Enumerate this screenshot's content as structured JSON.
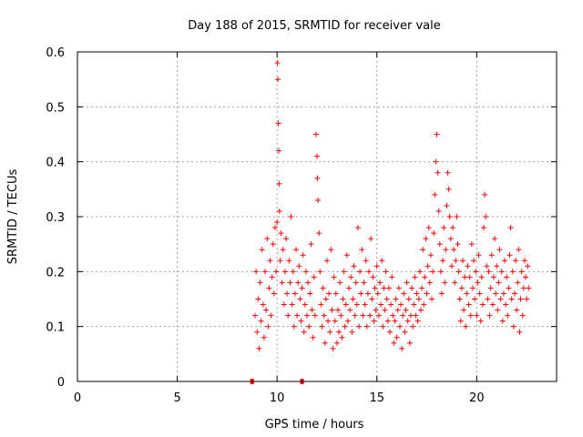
{
  "chart_data": {
    "type": "scatter",
    "title": "Day 188 of 2015, SRMTID for receiver vale",
    "xlabel": "GPS time / hours",
    "ylabel": "SRMTID / TECUs",
    "xlim": [
      0,
      24
    ],
    "ylim": [
      0,
      0.6
    ],
    "x_ticks": [
      0,
      5,
      10,
      15,
      20
    ],
    "x_tick_labels": [
      "0",
      "5",
      "10",
      "15",
      "20"
    ],
    "y_ticks": [
      0,
      0.1,
      0.2,
      0.3,
      0.4,
      0.5,
      0.6
    ],
    "y_tick_labels": [
      "0",
      "0.1",
      "0.2",
      "0.3",
      "0.4",
      "0.5",
      "0.6"
    ],
    "grid": true,
    "marker": "+",
    "series_color": "#ff0000",
    "series": [
      {
        "name": "SRMTID",
        "points": [
          [
            8.9,
            0.12
          ],
          [
            8.95,
            0.2
          ],
          [
            9.0,
            0.09
          ],
          [
            9.05,
            0.15
          ],
          [
            9.1,
            0.06
          ],
          [
            9.15,
            0.18
          ],
          [
            9.2,
            0.11
          ],
          [
            9.25,
            0.24
          ],
          [
            9.3,
            0.14
          ],
          [
            9.35,
            0.08
          ],
          [
            9.4,
            0.2
          ],
          [
            9.45,
            0.13
          ],
          [
            9.5,
            0.26
          ],
          [
            9.55,
            0.1
          ],
          [
            9.6,
            0.17
          ],
          [
            9.65,
            0.22
          ],
          [
            9.7,
            0.12
          ],
          [
            9.75,
            0.19
          ],
          [
            9.8,
            0.25
          ],
          [
            9.85,
            0.16
          ],
          [
            9.9,
            0.28
          ],
          [
            9.95,
            0.2
          ],
          [
            10.0,
            0.29
          ],
          [
            10.02,
            0.58
          ],
          [
            10.04,
            0.55
          ],
          [
            10.06,
            0.47
          ],
          [
            10.08,
            0.42
          ],
          [
            10.1,
            0.36
          ],
          [
            10.12,
            0.31
          ],
          [
            10.15,
            0.22
          ],
          [
            10.2,
            0.27
          ],
          [
            10.25,
            0.18
          ],
          [
            10.3,
            0.24
          ],
          [
            10.35,
            0.14
          ],
          [
            10.4,
            0.2
          ],
          [
            10.45,
            0.26
          ],
          [
            10.5,
            0.16
          ],
          [
            10.55,
            0.12
          ],
          [
            10.6,
            0.22
          ],
          [
            10.65,
            0.18
          ],
          [
            10.7,
            0.3
          ],
          [
            10.75,
            0.14
          ],
          [
            10.8,
            0.2
          ],
          [
            10.85,
            0.1
          ],
          [
            10.9,
            0.16
          ],
          [
            10.95,
            0.24
          ],
          [
            11.0,
            0.12
          ],
          [
            11.05,
            0.18
          ],
          [
            11.1,
            0.21
          ],
          [
            11.15,
            0.15
          ],
          [
            11.2,
            0.11
          ],
          [
            11.25,
            0.17
          ],
          [
            11.3,
            0.23
          ],
          [
            11.35,
            0.09
          ],
          [
            11.4,
            0.14
          ],
          [
            11.45,
            0.2
          ],
          [
            11.5,
            0.12
          ],
          [
            11.55,
            0.18
          ],
          [
            11.6,
            0.1
          ],
          [
            11.65,
            0.16
          ],
          [
            11.7,
            0.25
          ],
          [
            11.75,
            0.13
          ],
          [
            11.8,
            0.08
          ],
          [
            11.85,
            0.19
          ],
          [
            11.9,
            0.12
          ],
          [
            11.95,
            0.45
          ],
          [
            12.0,
            0.41
          ],
          [
            12.02,
            0.37
          ],
          [
            12.05,
            0.33
          ],
          [
            12.1,
            0.27
          ],
          [
            12.15,
            0.2
          ],
          [
            12.2,
            0.14
          ],
          [
            12.25,
            0.1
          ],
          [
            12.3,
            0.17
          ],
          [
            12.35,
            0.12
          ],
          [
            12.4,
            0.07
          ],
          [
            12.45,
            0.15
          ],
          [
            12.5,
            0.22
          ],
          [
            12.55,
            0.11
          ],
          [
            12.6,
            0.16
          ],
          [
            12.65,
            0.09
          ],
          [
            12.7,
            0.24
          ],
          [
            12.75,
            0.13
          ],
          [
            12.8,
            0.06
          ],
          [
            12.85,
            0.19
          ],
          [
            12.9,
            0.11
          ],
          [
            12.95,
            0.16
          ],
          [
            13.0,
            0.07
          ],
          [
            13.05,
            0.13
          ],
          [
            13.1,
            0.09
          ],
          [
            13.15,
            0.18
          ],
          [
            13.2,
            0.12
          ],
          [
            13.25,
            0.08
          ],
          [
            13.3,
            0.15
          ],
          [
            13.35,
            0.2
          ],
          [
            13.4,
            0.1
          ],
          [
            13.45,
            0.14
          ],
          [
            13.5,
            0.23
          ],
          [
            13.55,
            0.11
          ],
          [
            13.6,
            0.17
          ],
          [
            13.65,
            0.13
          ],
          [
            13.7,
            0.19
          ],
          [
            13.75,
            0.09
          ],
          [
            13.8,
            0.15
          ],
          [
            13.85,
            0.21
          ],
          [
            13.9,
            0.12
          ],
          [
            13.95,
            0.18
          ],
          [
            14.0,
            0.14
          ],
          [
            14.05,
            0.28
          ],
          [
            14.1,
            0.1
          ],
          [
            14.15,
            0.2
          ],
          [
            14.2,
            0.16
          ],
          [
            14.25,
            0.24
          ],
          [
            14.3,
            0.12
          ],
          [
            14.35,
            0.18
          ],
          [
            14.4,
            0.14
          ],
          [
            14.45,
            0.22
          ],
          [
            14.5,
            0.1
          ],
          [
            14.55,
            0.16
          ],
          [
            14.6,
            0.2
          ],
          [
            14.65,
            0.12
          ],
          [
            14.7,
            0.26
          ],
          [
            14.75,
            0.15
          ],
          [
            14.8,
            0.19
          ],
          [
            14.85,
            0.11
          ],
          [
            14.9,
            0.17
          ],
          [
            14.95,
            0.13
          ],
          [
            15.0,
            0.21
          ],
          [
            15.05,
            0.16
          ],
          [
            15.1,
            0.12
          ],
          [
            15.15,
            0.18
          ],
          [
            15.2,
            0.14
          ],
          [
            15.25,
            0.22
          ],
          [
            15.3,
            0.1
          ],
          [
            15.35,
            0.17
          ],
          [
            15.4,
            0.13
          ],
          [
            15.45,
            0.2
          ],
          [
            15.5,
            0.15
          ],
          [
            15.55,
            0.11
          ],
          [
            15.6,
            0.17
          ],
          [
            15.65,
            0.09
          ],
          [
            15.7,
            0.14
          ],
          [
            15.75,
            0.19
          ],
          [
            15.8,
            0.12
          ],
          [
            15.85,
            0.07
          ],
          [
            15.9,
            0.11
          ],
          [
            15.95,
            0.15
          ],
          [
            16.0,
            0.08
          ],
          [
            16.05,
            0.13
          ],
          [
            16.1,
            0.17
          ],
          [
            16.15,
            0.1
          ],
          [
            16.2,
            0.14
          ],
          [
            16.25,
            0.06
          ],
          [
            16.3,
            0.12
          ],
          [
            16.35,
            0.16
          ],
          [
            16.4,
            0.09
          ],
          [
            16.45,
            0.13
          ],
          [
            16.5,
            0.18
          ],
          [
            16.55,
            0.11
          ],
          [
            16.6,
            0.15
          ],
          [
            16.65,
            0.07
          ],
          [
            16.7,
            0.12
          ],
          [
            16.75,
            0.17
          ],
          [
            16.8,
            0.1
          ],
          [
            16.85,
            0.14
          ],
          [
            16.9,
            0.19
          ],
          [
            16.95,
            0.12
          ],
          [
            17.0,
            0.16
          ],
          [
            17.05,
            0.11
          ],
          [
            17.1,
            0.15
          ],
          [
            17.15,
            0.2
          ],
          [
            17.2,
            0.13
          ],
          [
            17.25,
            0.17
          ],
          [
            17.3,
            0.24
          ],
          [
            17.35,
            0.14
          ],
          [
            17.4,
            0.19
          ],
          [
            17.45,
            0.26
          ],
          [
            17.5,
            0.16
          ],
          [
            17.55,
            0.21
          ],
          [
            17.6,
            0.28
          ],
          [
            17.65,
            0.18
          ],
          [
            17.7,
            0.23
          ],
          [
            17.75,
            0.15
          ],
          [
            17.8,
            0.2
          ],
          [
            17.85,
            0.27
          ],
          [
            17.9,
            0.34
          ],
          [
            17.95,
            0.4
          ],
          [
            18.0,
            0.45
          ],
          [
            18.05,
            0.38
          ],
          [
            18.1,
            0.31
          ],
          [
            18.15,
            0.25
          ],
          [
            18.2,
            0.2
          ],
          [
            18.25,
            0.16
          ],
          [
            18.3,
            0.22
          ],
          [
            18.35,
            0.28
          ],
          [
            18.4,
            0.18
          ],
          [
            18.45,
            0.24
          ],
          [
            18.5,
            0.32
          ],
          [
            18.55,
            0.38
          ],
          [
            18.6,
            0.35
          ],
          [
            18.65,
            0.3
          ],
          [
            18.7,
            0.26
          ],
          [
            18.75,
            0.21
          ],
          [
            18.8,
            0.28
          ],
          [
            18.85,
            0.24
          ],
          [
            18.9,
            0.18
          ],
          [
            18.95,
            0.22
          ],
          [
            19.0,
            0.3
          ],
          [
            19.05,
            0.25
          ],
          [
            19.1,
            0.2
          ],
          [
            19.15,
            0.15
          ],
          [
            19.2,
            0.11
          ],
          [
            19.25,
            0.17
          ],
          [
            19.3,
            0.22
          ],
          [
            19.35,
            0.13
          ],
          [
            19.4,
            0.19
          ],
          [
            19.45,
            0.1
          ],
          [
            19.5,
            0.16
          ],
          [
            19.55,
            0.21
          ],
          [
            19.6,
            0.14
          ],
          [
            19.65,
            0.19
          ],
          [
            19.7,
            0.12
          ],
          [
            19.75,
            0.25
          ],
          [
            19.8,
            0.17
          ],
          [
            19.85,
            0.22
          ],
          [
            19.9,
            0.15
          ],
          [
            19.95,
            0.2
          ],
          [
            20.0,
            0.12
          ],
          [
            20.05,
            0.18
          ],
          [
            20.1,
            0.23
          ],
          [
            20.15,
            0.16
          ],
          [
            20.2,
            0.11
          ],
          [
            20.25,
            0.19
          ],
          [
            20.3,
            0.14
          ],
          [
            20.35,
            0.28
          ],
          [
            20.4,
            0.34
          ],
          [
            20.45,
            0.3
          ],
          [
            20.5,
            0.21
          ],
          [
            20.55,
            0.15
          ],
          [
            20.6,
            0.2
          ],
          [
            20.65,
            0.12
          ],
          [
            20.7,
            0.17
          ],
          [
            20.75,
            0.23
          ],
          [
            20.8,
            0.14
          ],
          [
            20.85,
            0.19
          ],
          [
            20.9,
            0.26
          ],
          [
            20.95,
            0.16
          ],
          [
            21.0,
            0.21
          ],
          [
            21.05,
            0.13
          ],
          [
            21.1,
            0.18
          ],
          [
            21.15,
            0.24
          ],
          [
            21.2,
            0.15
          ],
          [
            21.25,
            0.2
          ],
          [
            21.3,
            0.11
          ],
          [
            21.35,
            0.16
          ],
          [
            21.4,
            0.22
          ],
          [
            21.45,
            0.14
          ],
          [
            21.5,
            0.19
          ],
          [
            21.55,
            0.12
          ],
          [
            21.6,
            0.17
          ],
          [
            21.65,
            0.23
          ],
          [
            21.7,
            0.28
          ],
          [
            21.75,
            0.15
          ],
          [
            21.8,
            0.2
          ],
          [
            21.85,
            0.1
          ],
          [
            21.9,
            0.16
          ],
          [
            21.95,
            0.22
          ],
          [
            22.0,
            0.13
          ],
          [
            22.05,
            0.18
          ],
          [
            22.1,
            0.24
          ],
          [
            22.15,
            0.09
          ],
          [
            22.2,
            0.15
          ],
          [
            22.25,
            0.2
          ],
          [
            22.3,
            0.12
          ],
          [
            22.35,
            0.17
          ],
          [
            22.4,
            0.22
          ],
          [
            22.45,
            0.19
          ],
          [
            22.5,
            0.15
          ],
          [
            22.55,
            0.21
          ],
          [
            22.6,
            0.17
          ]
        ]
      }
    ],
    "zero_points": [
      [
        8.75,
        0
      ],
      [
        11.25,
        0
      ]
    ]
  }
}
